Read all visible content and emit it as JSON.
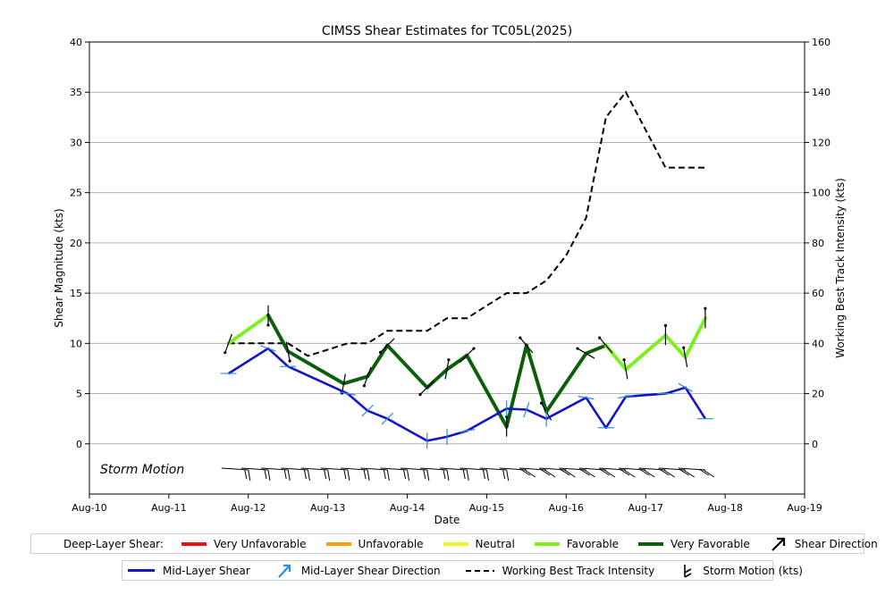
{
  "chart_data": {
    "type": "line",
    "title": "CIMSS Shear Estimates for TC05L(2025)",
    "xlabel": "Date",
    "ylabel_left": "Shear Magnitude (kts)",
    "ylabel_right": "Working Best Track Intensity (kts)",
    "storm_motion_label": "Storm Motion",
    "x_ticks": [
      "Aug-10",
      "Aug-11",
      "Aug-12",
      "Aug-13",
      "Aug-14",
      "Aug-15",
      "Aug-16",
      "Aug-17",
      "Aug-18",
      "Aug-19"
    ],
    "y_left_ticks": [
      "0",
      "5",
      "10",
      "15",
      "20",
      "25",
      "30",
      "35",
      "40"
    ],
    "y_right_ticks": [
      "0",
      "20",
      "40",
      "60",
      "80",
      "100",
      "120",
      "140",
      "160"
    ],
    "ylim_left": [
      -5,
      40
    ],
    "ylim_right": [
      -20,
      160
    ],
    "grid": "horizontal",
    "colors": {
      "very_unfavorable": "#e8101a",
      "unfavorable": "#f5a10f",
      "neutral": "#f2f226",
      "favorable": "#7ef022",
      "very_favorable": "#0b5e0b",
      "mid_layer": "#1414c8",
      "mid_arrow": "#2a8be0",
      "best_track": "#000000"
    },
    "deep_layer_shear": [
      {
        "x": 1.75,
        "y": 10.0,
        "c": "favorable"
      },
      {
        "x": 2.25,
        "y": 12.8,
        "c": "favorable"
      },
      {
        "x": 2.5,
        "y": 9.2,
        "c": "very_favorable"
      },
      {
        "x": 3.2,
        "y": 6.0,
        "c": "very_favorable"
      },
      {
        "x": 3.5,
        "y": 6.7,
        "c": "very_favorable"
      },
      {
        "x": 3.75,
        "y": 9.8,
        "c": "very_favorable"
      },
      {
        "x": 4.25,
        "y": 5.6,
        "c": "very_favorable"
      },
      {
        "x": 4.5,
        "y": 7.4,
        "c": "very_favorable"
      },
      {
        "x": 4.75,
        "y": 8.8,
        "c": "very_favorable"
      },
      {
        "x": 5.25,
        "y": 1.7,
        "c": "very_favorable"
      },
      {
        "x": 5.5,
        "y": 9.8,
        "c": "very_favorable"
      },
      {
        "x": 5.75,
        "y": 3.2,
        "c": "very_favorable"
      },
      {
        "x": 6.25,
        "y": 9.0,
        "c": "very_favorable"
      },
      {
        "x": 6.5,
        "y": 9.8,
        "c": "very_favorable"
      },
      {
        "x": 6.75,
        "y": 7.4,
        "c": "favorable"
      },
      {
        "x": 7.25,
        "y": 10.8,
        "c": "favorable"
      },
      {
        "x": 7.5,
        "y": 8.6,
        "c": "favorable"
      },
      {
        "x": 7.75,
        "y": 12.5,
        "c": "favorable"
      }
    ],
    "mid_layer_shear": [
      {
        "x": 1.75,
        "y": 7.0
      },
      {
        "x": 2.25,
        "y": 9.5
      },
      {
        "x": 2.5,
        "y": 7.7
      },
      {
        "x": 3.25,
        "y": 5.0
      },
      {
        "x": 3.5,
        "y": 3.3
      },
      {
        "x": 3.75,
        "y": 2.5
      },
      {
        "x": 4.25,
        "y": 0.3
      },
      {
        "x": 4.5,
        "y": 0.7
      },
      {
        "x": 4.75,
        "y": 1.3
      },
      {
        "x": 5.25,
        "y": 3.5
      },
      {
        "x": 5.5,
        "y": 3.4
      },
      {
        "x": 5.75,
        "y": 2.5
      },
      {
        "x": 6.25,
        "y": 4.6
      },
      {
        "x": 6.5,
        "y": 1.6
      },
      {
        "x": 6.75,
        "y": 4.7
      },
      {
        "x": 7.25,
        "y": 5.0
      },
      {
        "x": 7.5,
        "y": 5.6
      },
      {
        "x": 7.75,
        "y": 2.5
      }
    ],
    "best_track_intensity": [
      {
        "x": 1.75,
        "y": 40
      },
      {
        "x": 2.25,
        "y": 40
      },
      {
        "x": 2.5,
        "y": 40
      },
      {
        "x": 2.75,
        "y": 35
      },
      {
        "x": 3.25,
        "y": 40
      },
      {
        "x": 3.5,
        "y": 40
      },
      {
        "x": 3.75,
        "y": 45
      },
      {
        "x": 4.25,
        "y": 45
      },
      {
        "x": 4.5,
        "y": 50
      },
      {
        "x": 4.75,
        "y": 50
      },
      {
        "x": 5.25,
        "y": 60
      },
      {
        "x": 5.5,
        "y": 60
      },
      {
        "x": 5.75,
        "y": 65
      },
      {
        "x": 6.0,
        "y": 75
      },
      {
        "x": 6.25,
        "y": 90
      },
      {
        "x": 6.5,
        "y": 130
      },
      {
        "x": 6.75,
        "y": 140
      },
      {
        "x": 7.0,
        "y": 125
      },
      {
        "x": 7.25,
        "y": 110
      },
      {
        "x": 7.75,
        "y": 110
      }
    ],
    "storm_motion_times": [
      2.0,
      2.25,
      2.5,
      2.75,
      3.0,
      3.25,
      3.5,
      3.75,
      4.0,
      4.25,
      4.5,
      4.75,
      5.0,
      5.25,
      5.5,
      5.75,
      6.0,
      6.25,
      6.5,
      6.75,
      7.0,
      7.25,
      7.5,
      7.75
    ]
  },
  "legend": {
    "row1": {
      "title": "Deep-Layer Shear:",
      "very_unfavorable": "Very Unfavorable",
      "unfavorable": "Unfavorable",
      "neutral": "Neutral",
      "favorable": "Favorable",
      "very_favorable": "Very Favorable",
      "shear_direction": "Shear Direction"
    },
    "row2": {
      "mid_layer_shear": "Mid-Layer Shear",
      "mid_layer_direction": "Mid-Layer Shear Direction",
      "best_track": "Working Best Track Intensity",
      "storm_motion": "Storm Motion (kts)"
    }
  }
}
